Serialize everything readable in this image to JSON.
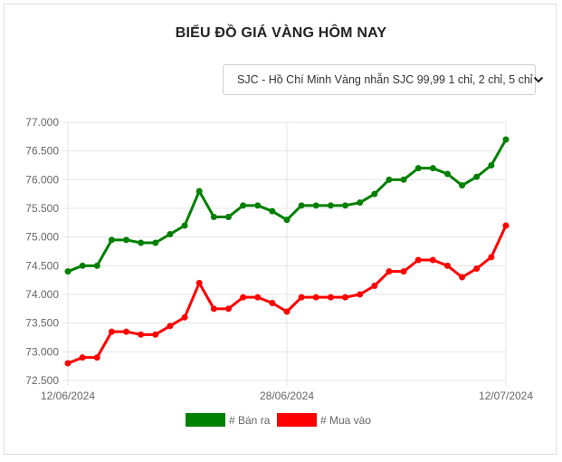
{
  "header": {
    "title": "BIỂU ĐỒ GIÁ VÀNG HÔM NAY"
  },
  "selector": {
    "value": "SJC - Hồ Chí Minh Vàng nhẫn SJC 99,99 1 chỉ, 2 chỉ, 5 chỉ",
    "icon": "chevron-down-icon"
  },
  "chart_data": {
    "type": "line",
    "x_tick_labels": [
      "12/06/2024",
      "28/06/2024",
      "12/07/2024"
    ],
    "y_tick_labels": [
      "72.500",
      "73.000",
      "73.500",
      "74.000",
      "74.500",
      "75.000",
      "75.500",
      "76.000",
      "76.500",
      "77.000"
    ],
    "ylim": [
      72500,
      77000
    ],
    "y_ticks": [
      72500,
      73000,
      73500,
      74000,
      74500,
      75000,
      75500,
      76000,
      76500,
      77000
    ],
    "grid": true,
    "legend_position": "bottom",
    "series": [
      {
        "name": "# Bán ra",
        "color": "#008000",
        "values": [
          74400,
          74500,
          74500,
          74950,
          74950,
          74900,
          74900,
          75050,
          75200,
          75800,
          75350,
          75350,
          75550,
          75550,
          75450,
          75300,
          75550,
          75550,
          75550,
          75550,
          75600,
          75750,
          76000,
          76000,
          76200,
          76200,
          76100,
          75900,
          76050,
          76250,
          76700
        ]
      },
      {
        "name": "# Mua vào",
        "color": "#ff0000",
        "values": [
          72800,
          72900,
          72900,
          73350,
          73350,
          73300,
          73300,
          73450,
          73600,
          74200,
          73750,
          73750,
          73950,
          73950,
          73850,
          73700,
          73950,
          73950,
          73950,
          73950,
          74000,
          74150,
          74400,
          74400,
          74600,
          74600,
          74500,
          74300,
          74450,
          74650,
          75200
        ]
      }
    ]
  }
}
